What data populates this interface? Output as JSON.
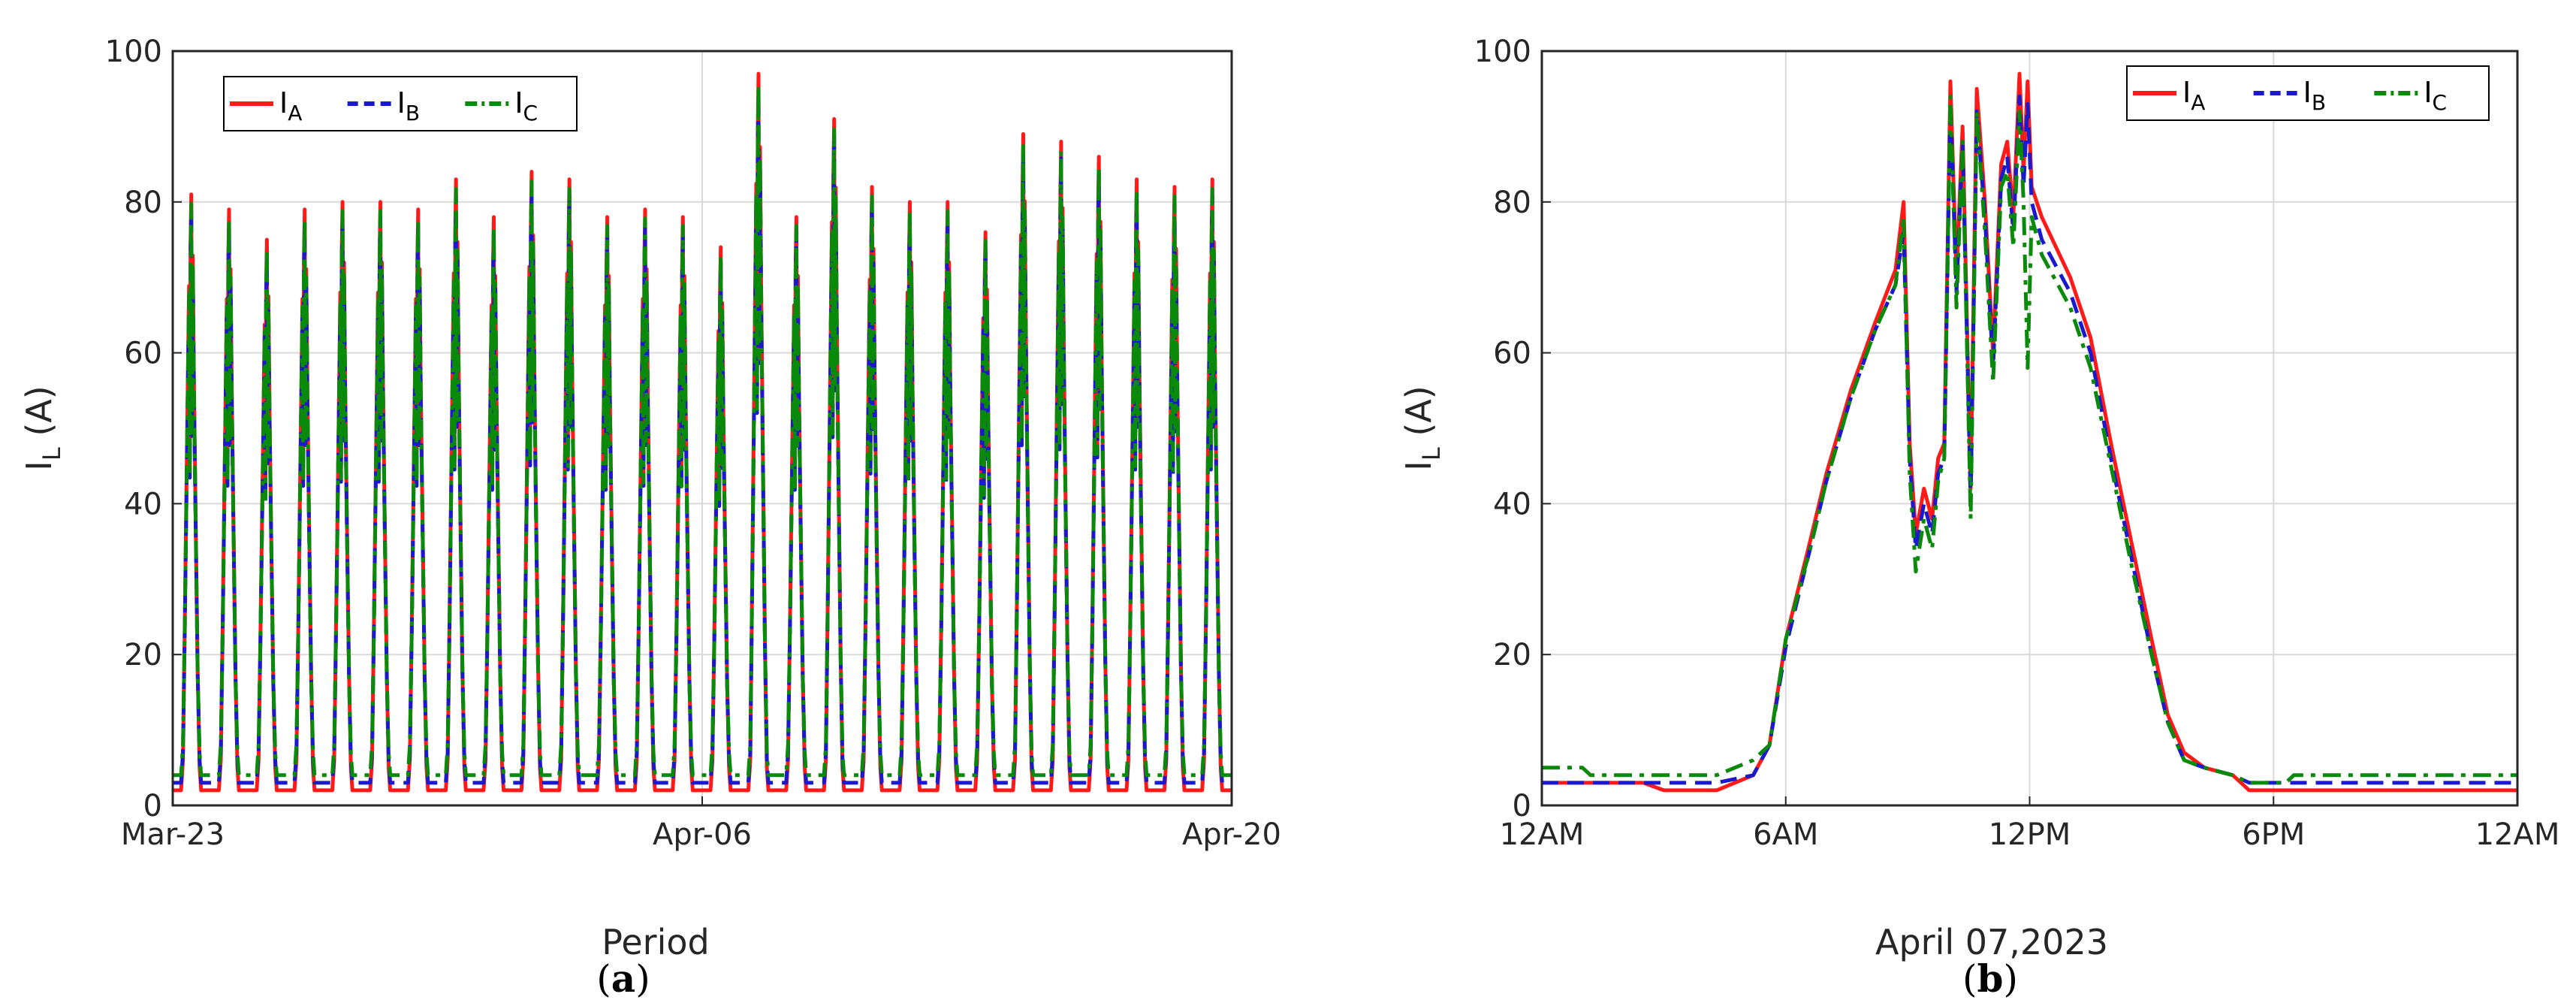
{
  "colors": {
    "IA": "#ff1a1a",
    "IB": "#1a1acc",
    "IC": "#0a8a0a",
    "grid": "#d9d9d9",
    "axis": "#262626"
  },
  "chart_data": [
    {
      "type": "line",
      "panel_label": "a",
      "xlabel": "Period",
      "ylabel": "I_L (A)",
      "ylim": [
        0,
        100
      ],
      "yticks": [
        0,
        20,
        40,
        60,
        80,
        100
      ],
      "xlim": [
        "2023-03-23",
        "2023-04-20"
      ],
      "xtick_labels": [
        "Mar-23",
        "Apr-06",
        "Apr-20"
      ],
      "grid": true,
      "legend": "top-left",
      "series": [
        {
          "name": "I_A",
          "base_value": 2
        },
        {
          "name": "I_B",
          "base_value": 3
        },
        {
          "name": "I_C",
          "base_value": 4
        }
      ],
      "daily_peaks": [
        {
          "date": "2023-03-23",
          "peak": 81
        },
        {
          "date": "2023-03-24",
          "peak": 79
        },
        {
          "date": "2023-03-25",
          "peak": 75
        },
        {
          "date": "2023-03-26",
          "peak": 79
        },
        {
          "date": "2023-03-27",
          "peak": 80
        },
        {
          "date": "2023-03-28",
          "peak": 80
        },
        {
          "date": "2023-03-29",
          "peak": 79
        },
        {
          "date": "2023-03-30",
          "peak": 83
        },
        {
          "date": "2023-03-31",
          "peak": 78
        },
        {
          "date": "2023-04-01",
          "peak": 84
        },
        {
          "date": "2023-04-02",
          "peak": 83
        },
        {
          "date": "2023-04-03",
          "peak": 78
        },
        {
          "date": "2023-04-04",
          "peak": 79
        },
        {
          "date": "2023-04-05",
          "peak": 78
        },
        {
          "date": "2023-04-06",
          "peak": 74
        },
        {
          "date": "2023-04-07",
          "peak": 97
        },
        {
          "date": "2023-04-08",
          "peak": 78
        },
        {
          "date": "2023-04-09",
          "peak": 91
        },
        {
          "date": "2023-04-10",
          "peak": 82
        },
        {
          "date": "2023-04-11",
          "peak": 80
        },
        {
          "date": "2023-04-12",
          "peak": 80
        },
        {
          "date": "2023-04-13",
          "peak": 76
        },
        {
          "date": "2023-04-14",
          "peak": 89
        },
        {
          "date": "2023-04-15",
          "peak": 88
        },
        {
          "date": "2023-04-16",
          "peak": 86
        },
        {
          "date": "2023-04-17",
          "peak": 83
        },
        {
          "date": "2023-04-18",
          "peak": 82
        },
        {
          "date": "2023-04-19",
          "peak": 83
        }
      ]
    },
    {
      "type": "line",
      "panel_label": "b",
      "xlabel": "April 07,2023",
      "ylabel": "I_L (A)",
      "ylim": [
        0,
        100
      ],
      "yticks": [
        0,
        20,
        40,
        60,
        80,
        100
      ],
      "xlim": [
        "00:00",
        "24:00"
      ],
      "xtick_labels": [
        "12AM",
        "6AM",
        "12PM",
        "6PM",
        "12AM"
      ],
      "grid": true,
      "legend": "top-right",
      "series": [
        {
          "name": "I_A",
          "values": [
            [
              0,
              3
            ],
            [
              2.5,
              3
            ],
            [
              3,
              2
            ],
            [
              4.3,
              2
            ],
            [
              5.2,
              4
            ],
            [
              5.6,
              8
            ],
            [
              6,
              22
            ],
            [
              6.6,
              35
            ],
            [
              7,
              44
            ],
            [
              7.6,
              55
            ],
            [
              8.2,
              64
            ],
            [
              8.7,
              71
            ],
            [
              8.9,
              80
            ],
            [
              9.05,
              48
            ],
            [
              9.2,
              36
            ],
            [
              9.4,
              42
            ],
            [
              9.6,
              38
            ],
            [
              9.75,
              46
            ],
            [
              9.9,
              48
            ],
            [
              10.05,
              96
            ],
            [
              10.2,
              70
            ],
            [
              10.35,
              90
            ],
            [
              10.55,
              42
            ],
            [
              10.7,
              95
            ],
            [
              10.9,
              80
            ],
            [
              11.1,
              60
            ],
            [
              11.3,
              85
            ],
            [
              11.45,
              88
            ],
            [
              11.6,
              78
            ],
            [
              11.75,
              97
            ],
            [
              11.85,
              84
            ],
            [
              11.95,
              96
            ],
            [
              12.05,
              82
            ],
            [
              12.3,
              78
            ],
            [
              13,
              70
            ],
            [
              13.5,
              62
            ],
            [
              14,
              48
            ],
            [
              14.5,
              35
            ],
            [
              15,
              22
            ],
            [
              15.4,
              12
            ],
            [
              15.8,
              7
            ],
            [
              16.3,
              5
            ],
            [
              17,
              4
            ],
            [
              17.4,
              2
            ],
            [
              24,
              2
            ]
          ]
        },
        {
          "name": "I_B",
          "values": [
            [
              0,
              3
            ],
            [
              4.3,
              3
            ],
            [
              5.2,
              4
            ],
            [
              5.6,
              8
            ],
            [
              6,
              21
            ],
            [
              6.6,
              34
            ],
            [
              7,
              43
            ],
            [
              7.6,
              54
            ],
            [
              8.2,
              63
            ],
            [
              8.7,
              69
            ],
            [
              8.9,
              76
            ],
            [
              9.05,
              46
            ],
            [
              9.2,
              34
            ],
            [
              9.4,
              40
            ],
            [
              9.6,
              36
            ],
            [
              9.75,
              44
            ],
            [
              9.9,
              46
            ],
            [
              10.05,
              93
            ],
            [
              10.2,
              68
            ],
            [
              10.35,
              88
            ],
            [
              10.55,
              40
            ],
            [
              10.7,
              92
            ],
            [
              10.9,
              78
            ],
            [
              11.1,
              58
            ],
            [
              11.3,
              83
            ],
            [
              11.45,
              86
            ],
            [
              11.6,
              76
            ],
            [
              11.75,
              94
            ],
            [
              11.85,
              82
            ],
            [
              11.95,
              93
            ],
            [
              12.05,
              80
            ],
            [
              12.3,
              75
            ],
            [
              13,
              68
            ],
            [
              13.5,
              60
            ],
            [
              14,
              46
            ],
            [
              14.5,
              33
            ],
            [
              15,
              20
            ],
            [
              15.4,
              11
            ],
            [
              15.8,
              6
            ],
            [
              16.3,
              5
            ],
            [
              17,
              4
            ],
            [
              17.4,
              3
            ],
            [
              24,
              3
            ]
          ]
        },
        {
          "name": "I_C",
          "values": [
            [
              0,
              5
            ],
            [
              1,
              5
            ],
            [
              1.2,
              4
            ],
            [
              4.3,
              4
            ],
            [
              5.2,
              6
            ],
            [
              5.6,
              8
            ],
            [
              6,
              22
            ],
            [
              6.6,
              34
            ],
            [
              7,
              43
            ],
            [
              7.6,
              54
            ],
            [
              8.2,
              63
            ],
            [
              8.7,
              69
            ],
            [
              8.9,
              78
            ],
            [
              9.05,
              44
            ],
            [
              9.2,
              31
            ],
            [
              9.4,
              38
            ],
            [
              9.6,
              34
            ],
            [
              9.75,
              43
            ],
            [
              9.9,
              46
            ],
            [
              10.05,
              94
            ],
            [
              10.2,
              66
            ],
            [
              10.35,
              88
            ],
            [
              10.55,
              38
            ],
            [
              10.7,
              92
            ],
            [
              10.9,
              76
            ],
            [
              11.1,
              56
            ],
            [
              11.3,
              82
            ],
            [
              11.45,
              84
            ],
            [
              11.6,
              74
            ],
            [
              11.75,
              92
            ],
            [
              11.85,
              80
            ],
            [
              11.95,
              58
            ],
            [
              12.05,
              78
            ],
            [
              12.3,
              73
            ],
            [
              13,
              66
            ],
            [
              13.5,
              58
            ],
            [
              14,
              45
            ],
            [
              14.5,
              32
            ],
            [
              15,
              20
            ],
            [
              15.4,
              11
            ],
            [
              15.8,
              6
            ],
            [
              16.3,
              5
            ],
            [
              17,
              4
            ],
            [
              17.4,
              3
            ],
            [
              18.3,
              3
            ],
            [
              18.5,
              4
            ],
            [
              24,
              4
            ]
          ]
        }
      ]
    }
  ]
}
